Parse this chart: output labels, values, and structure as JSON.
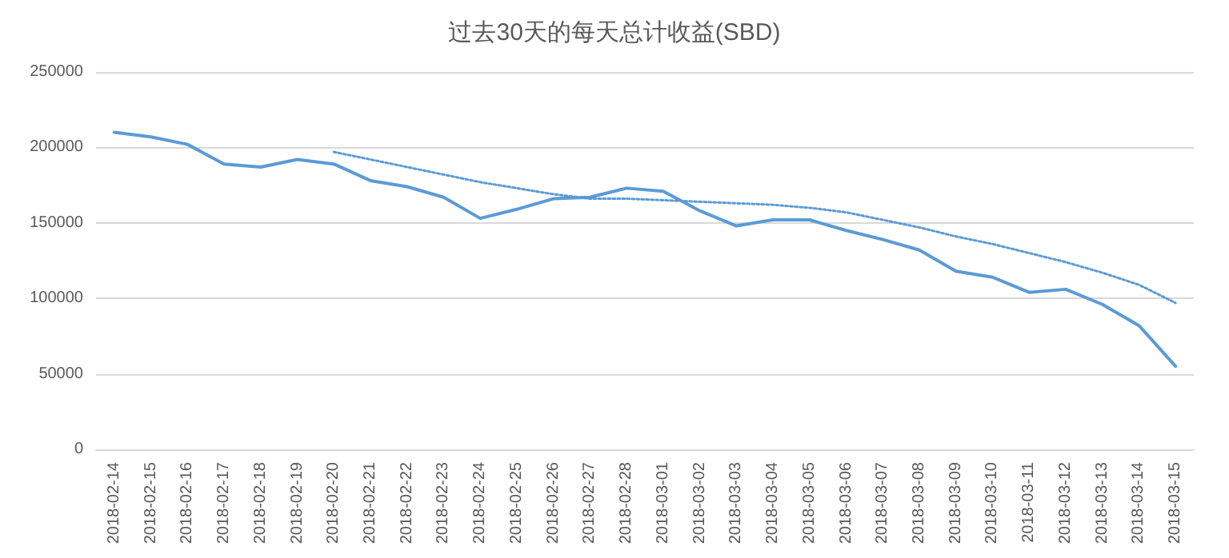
{
  "chart_data": {
    "type": "line",
    "title": "过去30天的每天总计收益(SBD)",
    "categories": [
      "2018-02-14",
      "2018-02-15",
      "2018-02-16",
      "2018-02-17",
      "2018-02-18",
      "2018-02-19",
      "2018-02-20",
      "2018-02-21",
      "2018-02-22",
      "2018-02-23",
      "2018-02-24",
      "2018-02-25",
      "2018-02-26",
      "2018-02-27",
      "2018-02-28",
      "2018-03-01",
      "2018-03-02",
      "2018-03-03",
      "2018-03-04",
      "2018-03-05",
      "2018-03-06",
      "2018-03-07",
      "2018-03-08",
      "2018-03-09",
      "2018-03-10",
      "2018-03-11",
      "2018-03-12",
      "2018-03-13",
      "2018-03-14",
      "2018-03-15"
    ],
    "series": [
      {
        "color": "#5b9bd5",
        "line_style": "solid",
        "values": [
          210000,
          207000,
          202000,
          189000,
          187000,
          192000,
          189000,
          178000,
          174000,
          167000,
          153000,
          159000,
          166000,
          167000,
          173000,
          171000,
          158000,
          148000,
          152000,
          152000,
          145000,
          139000,
          132000,
          118000,
          114000,
          104000,
          106000,
          96000,
          82000,
          55000
        ]
      },
      {
        "color": "#5b9bd5",
        "line_style": "dotted",
        "values": [
          null,
          null,
          null,
          null,
          null,
          null,
          197000,
          192000,
          187000,
          182000,
          177000,
          173000,
          169000,
          166000,
          166000,
          165000,
          164000,
          163000,
          162000,
          160000,
          157000,
          152000,
          147000,
          141000,
          136000,
          130000,
          124000,
          117000,
          109000,
          97000
        ]
      }
    ],
    "ylim": [
      0,
      250000
    ],
    "yticks": [
      0,
      50000,
      100000,
      150000,
      200000,
      250000
    ],
    "grid": "y",
    "marker": "none"
  }
}
